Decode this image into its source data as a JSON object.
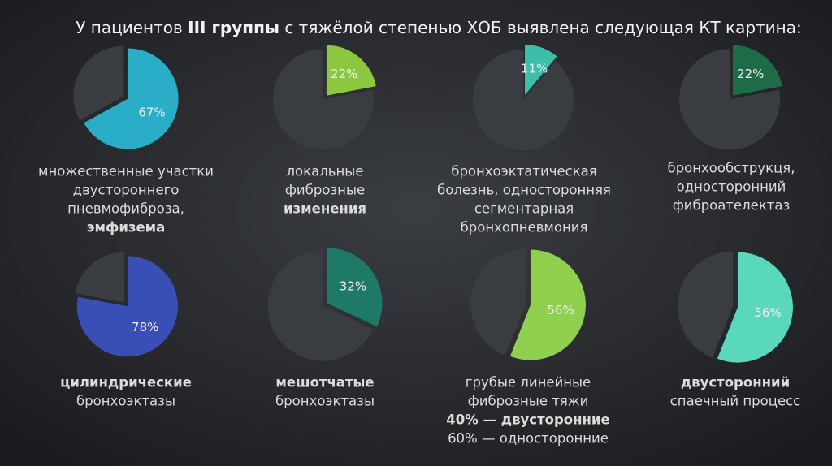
{
  "title_parts": [
    {
      "text": "У пациентов ",
      "bold": false
    },
    {
      "text": "III группы",
      "bold": true
    },
    {
      "text": " с тяжёлой степенью ХОБ выявлена следующая КТ картина:",
      "bold": false
    }
  ],
  "chart_data": [
    {
      "type": "pie",
      "values": [
        67
      ],
      "value_labels": [
        "67%"
      ],
      "color": "#2aaec8",
      "caption": [
        {
          "text": "множественные участки",
          "bold": false
        },
        {
          "text": "двустороннего",
          "bold": false
        },
        {
          "text": "пневмофиброза,",
          "bold": false
        },
        {
          "text": "эмфизема",
          "bold": true
        }
      ]
    },
    {
      "type": "pie",
      "values": [
        22
      ],
      "value_labels": [
        "22%"
      ],
      "color": "#8dc63f",
      "caption": [
        {
          "text": "локальные",
          "bold": false
        },
        {
          "text": "фиброзные",
          "bold": false
        },
        {
          "text": "изменения",
          "bold": true
        }
      ]
    },
    {
      "type": "pie",
      "values": [
        11
      ],
      "value_labels": [
        "11%"
      ],
      "color": "#3bbfa8",
      "caption": [
        {
          "text": "бронхоэктатическая",
          "bold": false
        },
        {
          "text": "болезнь, односторонняя",
          "bold": false
        },
        {
          "text": "сегментарная",
          "bold": false
        },
        {
          "text": "бронхопневмония",
          "bold": false
        }
      ]
    },
    {
      "type": "pie",
      "values": [
        22
      ],
      "value_labels": [
        "22%"
      ],
      "color": "#1e6b47",
      "caption": [
        {
          "text": "бронхообструкця,",
          "bold": false
        },
        {
          "text": "односторонний",
          "bold": false
        },
        {
          "text": "фиброателектаз",
          "bold": false
        }
      ]
    },
    {
      "type": "pie",
      "values": [
        78
      ],
      "value_labels": [
        "78%"
      ],
      "color": "#3a4fb5",
      "caption": [
        {
          "text": "цилиндрические",
          "bold": true
        },
        {
          "text": "бронхоэктазы",
          "bold": false
        }
      ]
    },
    {
      "type": "pie",
      "values": [
        32
      ],
      "value_labels": [
        "32%"
      ],
      "color": "#1e7a66",
      "caption": [
        {
          "text": "мешотчатые",
          "bold": true
        },
        {
          "text": "бронхоэктазы",
          "bold": false
        }
      ]
    },
    {
      "type": "pie",
      "values": [
        56
      ],
      "value_labels": [
        "56%"
      ],
      "color": "#8fd14f",
      "caption": [
        {
          "text": "грубые линейные",
          "bold": false
        },
        {
          "text": "фиброзные тяжи",
          "bold": false
        },
        {
          "text": "40% — двусторонние",
          "bold": true
        },
        {
          "text": "60% — односторонние",
          "bold": false
        }
      ]
    },
    {
      "type": "pie",
      "values": [
        56
      ],
      "value_labels": [
        "56%"
      ],
      "color": "#5ad8bb",
      "caption": [
        {
          "text": "двусторонний",
          "bold": true
        },
        {
          "text": "спаечный процесс",
          "bold": false
        }
      ]
    }
  ]
}
